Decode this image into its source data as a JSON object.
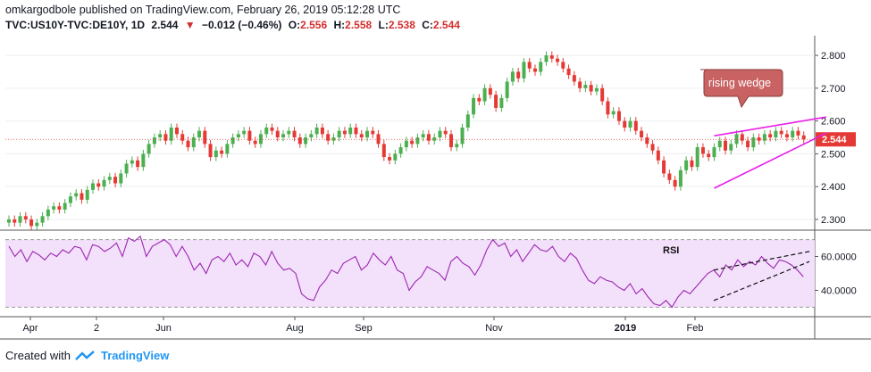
{
  "header": {
    "line1": "omkargodbole published on TradingView.com, February 26, 2019 05:12:28 UTC",
    "symbol": "TVC:US10Y-TVC:DE10Y, 1D",
    "last": "2.544",
    "change": "−0.012 (−0.46%)",
    "open_label": "O:",
    "open": "2.556",
    "high_label": "H:",
    "high": "2.558",
    "low_label": "L:",
    "low": "2.538",
    "close_label": "C:",
    "close": "2.544"
  },
  "footer": {
    "created_with": "Created with",
    "brand": "TradingView"
  },
  "colors": {
    "up": "#4caf50",
    "down": "#e53935",
    "wedge": "#e91ee9",
    "rsi_line": "#9c27b0",
    "rsi_band": "#f3e0fb",
    "callout": "#c96262",
    "price_tag": "#e53935"
  },
  "chart_data": [
    {
      "type": "candlestick",
      "title": "",
      "y_ticks": [
        "2.800",
        "2.700",
        "2.600",
        "2.500",
        "2.400",
        "2.300"
      ],
      "ylim": [
        2.27,
        2.86
      ],
      "last_price": 2.544,
      "last_price_label": "2.544",
      "x_labels": [
        "Apr",
        "2",
        "Jun",
        "Aug",
        "Sep",
        "Nov",
        "2019",
        "Feb"
      ],
      "series_close": [
        2.3,
        2.29,
        2.31,
        2.3,
        2.28,
        2.29,
        2.31,
        2.33,
        2.34,
        2.33,
        2.35,
        2.37,
        2.38,
        2.36,
        2.39,
        2.41,
        2.4,
        2.42,
        2.43,
        2.41,
        2.44,
        2.47,
        2.48,
        2.46,
        2.5,
        2.53,
        2.55,
        2.56,
        2.54,
        2.58,
        2.56,
        2.54,
        2.52,
        2.55,
        2.57,
        2.53,
        2.49,
        2.51,
        2.5,
        2.53,
        2.55,
        2.56,
        2.57,
        2.54,
        2.53,
        2.56,
        2.58,
        2.57,
        2.55,
        2.56,
        2.57,
        2.55,
        2.53,
        2.55,
        2.56,
        2.58,
        2.56,
        2.54,
        2.55,
        2.57,
        2.56,
        2.58,
        2.56,
        2.55,
        2.57,
        2.56,
        2.53,
        2.49,
        2.48,
        2.5,
        2.52,
        2.54,
        2.53,
        2.55,
        2.56,
        2.54,
        2.55,
        2.57,
        2.56,
        2.52,
        2.53,
        2.58,
        2.62,
        2.67,
        2.66,
        2.7,
        2.68,
        2.64,
        2.67,
        2.72,
        2.75,
        2.73,
        2.78,
        2.76,
        2.75,
        2.78,
        2.8,
        2.79,
        2.78,
        2.76,
        2.74,
        2.72,
        2.7,
        2.71,
        2.69,
        2.7,
        2.66,
        2.62,
        2.63,
        2.6,
        2.58,
        2.6,
        2.57,
        2.55,
        2.53,
        2.51,
        2.48,
        2.44,
        2.42,
        2.4,
        2.45,
        2.48,
        2.46,
        2.52,
        2.5,
        2.49,
        2.52,
        2.54,
        2.51,
        2.53,
        2.56,
        2.54,
        2.52,
        2.55,
        2.54,
        2.56,
        2.55,
        2.57,
        2.56,
        2.55,
        2.57,
        2.556,
        2.544
      ],
      "annotations": [
        {
          "text": "rising wedge",
          "type": "callout"
        },
        {
          "type": "line",
          "from": [
            126,
            2.395
          ],
          "to": [
            146,
            2.563
          ]
        },
        {
          "type": "line",
          "from": [
            126,
            2.555
          ],
          "to": [
            146,
            2.612
          ]
        }
      ]
    },
    {
      "type": "line",
      "title": "",
      "y_ticks": [
        "60.0000",
        "40.0000"
      ],
      "ylim": [
        26,
        74
      ],
      "band": [
        30,
        70
      ],
      "annotations": [
        {
          "text": "RSI",
          "type": "label"
        }
      ],
      "values": [
        66,
        60,
        64,
        57,
        63,
        61,
        58,
        62,
        60,
        64,
        62,
        66,
        65,
        58,
        67,
        66,
        63,
        65,
        68,
        60,
        71,
        69,
        72,
        60,
        66,
        68,
        70,
        67,
        60,
        66,
        60,
        52,
        56,
        50,
        58,
        60,
        57,
        62,
        55,
        58,
        54,
        62,
        60,
        55,
        63,
        56,
        52,
        53,
        50,
        38,
        35,
        34,
        42,
        46,
        52,
        50,
        56,
        58,
        60,
        52,
        55,
        62,
        58,
        55,
        60,
        52,
        50,
        40,
        45,
        48,
        54,
        52,
        50,
        46,
        57,
        60,
        56,
        54,
        49,
        55,
        64,
        70,
        66,
        68,
        60,
        64,
        57,
        62,
        67,
        64,
        63,
        66,
        60,
        57,
        62,
        59,
        52,
        46,
        44,
        48,
        46,
        45,
        42,
        40,
        44,
        38,
        41,
        36,
        32,
        31,
        34,
        30,
        36,
        40,
        38,
        42,
        46,
        50,
        52,
        48,
        55,
        52,
        58,
        54,
        57,
        55,
        60,
        56,
        53,
        58,
        57,
        55,
        52,
        48
      ]
    }
  ]
}
